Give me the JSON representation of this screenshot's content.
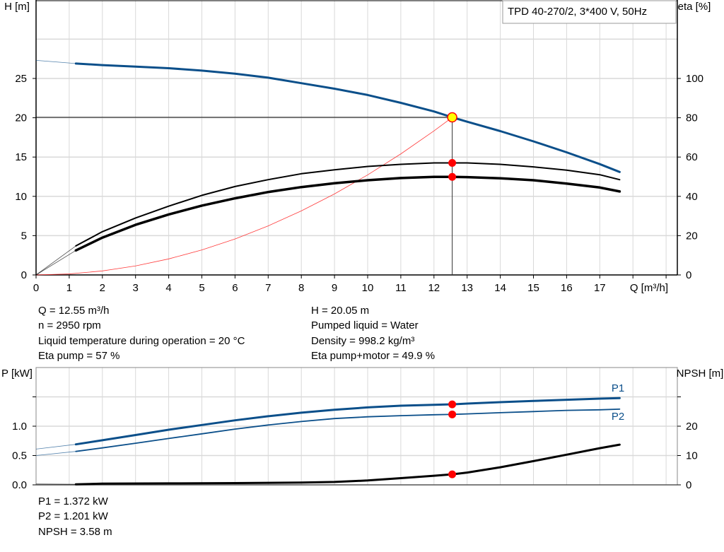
{
  "title_box": "TPD 40-270/2, 3*400 V, 50Hz",
  "colors": {
    "head": "#0b4f8a",
    "power": "#0b4f8a",
    "efficiency": "#000000",
    "npsh": "#000000",
    "system": "#ff3b3b",
    "marker": "#ff0000",
    "duty_point": "#ffff00",
    "grid": "#d9d9d9"
  },
  "info": {
    "q": "Q = 12.55 m³/h",
    "n": "n = 2950 rpm",
    "temp": "Liquid temperature during operation = 20 °C",
    "eta_pump": "Eta pump = 57 %",
    "h": "H = 20.05 m",
    "liquid": "Pumped liquid = Water",
    "density": "Density = 998.2 kg/m³",
    "eta_total": "Eta pump+motor = 49.9 %",
    "p1": "P1 = 1.372 kW",
    "p2": "P2 = 1.201 kW",
    "npsh": "NPSH = 3.58 m"
  },
  "chart_data": [
    {
      "type": "line",
      "xlabel": "Q [m³/h]",
      "ylabel": "H [m]",
      "y2label": "eta [%]",
      "xlim": [
        0,
        19
      ],
      "ylim": [
        0,
        35
      ],
      "y2lim": [
        0,
        140
      ],
      "xticks": [
        0,
        1,
        2,
        3,
        4,
        5,
        6,
        7,
        8,
        9,
        10,
        11,
        12,
        13,
        14,
        15,
        16,
        17
      ],
      "yticks": [
        0,
        5,
        10,
        15,
        20,
        25
      ],
      "y2ticks": [
        0,
        20,
        40,
        60,
        80,
        100
      ],
      "grid": true,
      "duty_point": {
        "q": 12.55,
        "h": 20.05
      },
      "series": [
        {
          "key": "head",
          "axis": "left",
          "x": [
            0,
            1.2,
            2,
            3,
            4,
            5,
            6,
            7,
            8,
            9,
            10,
            11,
            12,
            12.55,
            13,
            14,
            15,
            16,
            17,
            17.6
          ],
          "y": [
            27.3,
            26.9,
            26.7,
            26.5,
            26.3,
            26.0,
            25.6,
            25.1,
            24.4,
            23.7,
            22.9,
            21.9,
            20.8,
            20.05,
            19.5,
            18.3,
            17.0,
            15.6,
            14.1,
            13.1
          ]
        },
        {
          "key": "eta_pump",
          "axis": "right",
          "x": [
            0,
            1.2,
            2,
            3,
            4,
            5,
            6,
            7,
            8,
            9,
            10,
            11,
            12,
            12.55,
            13,
            14,
            15,
            16,
            17,
            17.6
          ],
          "y": [
            0,
            14.8,
            22,
            29,
            35,
            40.5,
            45,
            48.5,
            51.5,
            53.5,
            55.2,
            56.3,
            57,
            57,
            57,
            56.3,
            55,
            53.3,
            51,
            48.5
          ]
        },
        {
          "key": "eta_total",
          "axis": "right",
          "x": [
            0,
            1.2,
            2,
            3,
            4,
            5,
            6,
            7,
            8,
            9,
            10,
            11,
            12,
            12.55,
            13,
            14,
            15,
            16,
            17,
            17.6
          ],
          "y": [
            0,
            12.5,
            19,
            25.5,
            30.8,
            35.3,
            39,
            42.2,
            44.7,
            46.7,
            48.2,
            49.3,
            49.9,
            49.9,
            49.8,
            49.2,
            48.2,
            46.5,
            44.5,
            42.5
          ]
        },
        {
          "key": "system",
          "axis": "left",
          "x": [
            0,
            1,
            2,
            3,
            4,
            5,
            6,
            7,
            8,
            9,
            10,
            11,
            12,
            12.55
          ],
          "y": [
            0,
            0.13,
            0.51,
            1.15,
            2.04,
            3.18,
            4.58,
            6.24,
            8.15,
            10.31,
            12.73,
            15.4,
            18.33,
            20.05
          ]
        }
      ],
      "markers": [
        {
          "series": "eta_pump",
          "x": 12.55,
          "y": 57
        },
        {
          "series": "eta_total",
          "x": 12.55,
          "y": 49.9
        }
      ]
    },
    {
      "type": "line",
      "ylabel": "P [kW]",
      "y2label": "NPSH [m]",
      "xlim": [
        0,
        19
      ],
      "ylim": [
        0,
        2
      ],
      "y2lim": [
        0,
        40
      ],
      "yticks": [
        "0.0",
        "0.5",
        "1.0"
      ],
      "y2ticks": [
        0,
        10,
        20
      ],
      "grid": true,
      "series": [
        {
          "key": "p1",
          "name": "P1",
          "axis": "left",
          "x": [
            0,
            1.2,
            2,
            3,
            4,
            5,
            6,
            7,
            8,
            9,
            10,
            11,
            12,
            12.55,
            13,
            14,
            15,
            16,
            17,
            17.6
          ],
          "y": [
            0.61,
            0.69,
            0.76,
            0.85,
            0.94,
            1.02,
            1.1,
            1.17,
            1.23,
            1.28,
            1.32,
            1.35,
            1.365,
            1.372,
            1.385,
            1.41,
            1.43,
            1.45,
            1.47,
            1.48
          ]
        },
        {
          "key": "p2",
          "name": "P2",
          "axis": "left",
          "x": [
            0,
            1.2,
            2,
            3,
            4,
            5,
            6,
            7,
            8,
            9,
            10,
            11,
            12,
            12.55,
            13,
            14,
            15,
            16,
            17,
            17.6
          ],
          "y": [
            0.5,
            0.57,
            0.63,
            0.71,
            0.79,
            0.87,
            0.95,
            1.02,
            1.08,
            1.13,
            1.16,
            1.18,
            1.195,
            1.201,
            1.21,
            1.23,
            1.25,
            1.27,
            1.28,
            1.29
          ]
        },
        {
          "key": "npsh",
          "axis": "right",
          "x": [
            0,
            1.2,
            2,
            4,
            6,
            8,
            9,
            10,
            11,
            12,
            12.55,
            13,
            14,
            15,
            16,
            17,
            17.6
          ],
          "y": [
            0.3,
            0.2,
            0.4,
            0.5,
            0.6,
            0.8,
            1.0,
            1.5,
            2.3,
            3.1,
            3.58,
            4.2,
            6.0,
            8.1,
            10.3,
            12.5,
            13.7
          ]
        }
      ],
      "markers": [
        {
          "series": "p1",
          "x": 12.55,
          "y": 1.372
        },
        {
          "series": "p2",
          "x": 12.55,
          "y": 1.201
        },
        {
          "series": "npsh",
          "x": 12.55,
          "y": 3.58
        }
      ]
    }
  ]
}
